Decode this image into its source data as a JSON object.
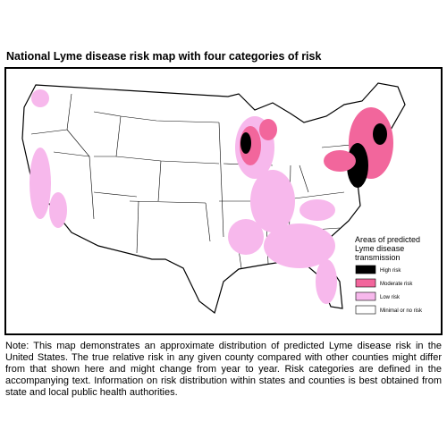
{
  "header": {
    "title": "National Lyme disease risk map with four categories of risk"
  },
  "legend": {
    "title_lines": [
      "Areas of predicted",
      "Lyme disease",
      "transmission"
    ],
    "items": [
      {
        "label": "High risk",
        "color": "#000000"
      },
      {
        "label": "Moderate risk",
        "color": "#f2669c"
      },
      {
        "label": "Low risk",
        "color": "#f7b8ec"
      },
      {
        "label": "Minimal or no risk",
        "color": "#ffffff"
      }
    ]
  },
  "note": "Note: This map demonstrates an approximate distribution of predicted Lyme disease risk in the United States. The true relative risk in any given county compared with other counties might differ from that shown here and might change from year to year. Risk categories are defined in the accompanying text. Information on risk distribution within states and counties is best obtained from state and local public health authorities."
}
